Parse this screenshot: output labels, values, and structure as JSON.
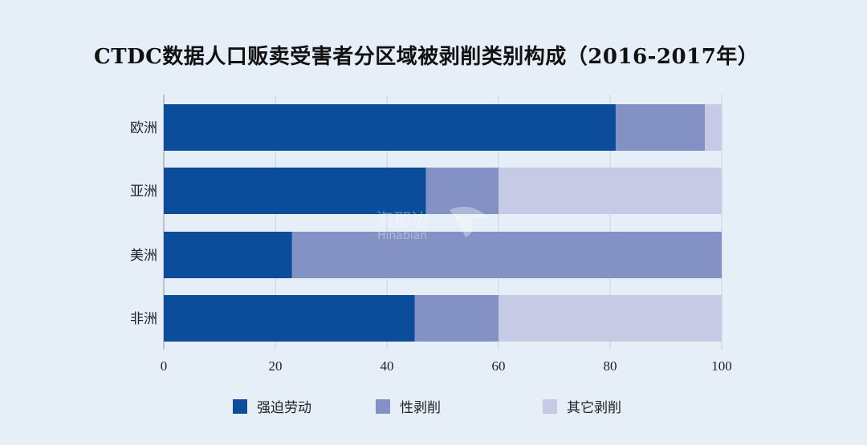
{
  "chart_data": {
    "type": "bar",
    "orientation": "horizontal",
    "stacked": true,
    "title": "CTDC数据人口贩卖受害者分区域被剥削类别构成（2016-2017年）",
    "categories": [
      "欧洲",
      "亚洲",
      "美洲",
      "非洲"
    ],
    "series": [
      {
        "name": "强迫劳动",
        "values": [
          81,
          47,
          23,
          45
        ],
        "color": "#0b4d9a"
      },
      {
        "name": "性剥削",
        "values": [
          16,
          13,
          77,
          15
        ],
        "color": "#8491c5"
      },
      {
        "name": "其它剥削",
        "values": [
          3,
          40,
          0,
          40
        ],
        "color": "#c6cae4"
      }
    ],
    "xlim": [
      0,
      100
    ],
    "xticks": [
      0,
      20,
      40,
      60,
      80,
      100
    ],
    "grid": true,
    "legend_position": "bottom"
  },
  "watermark": {
    "text": "海那边",
    "subtext": "Hinabian"
  }
}
